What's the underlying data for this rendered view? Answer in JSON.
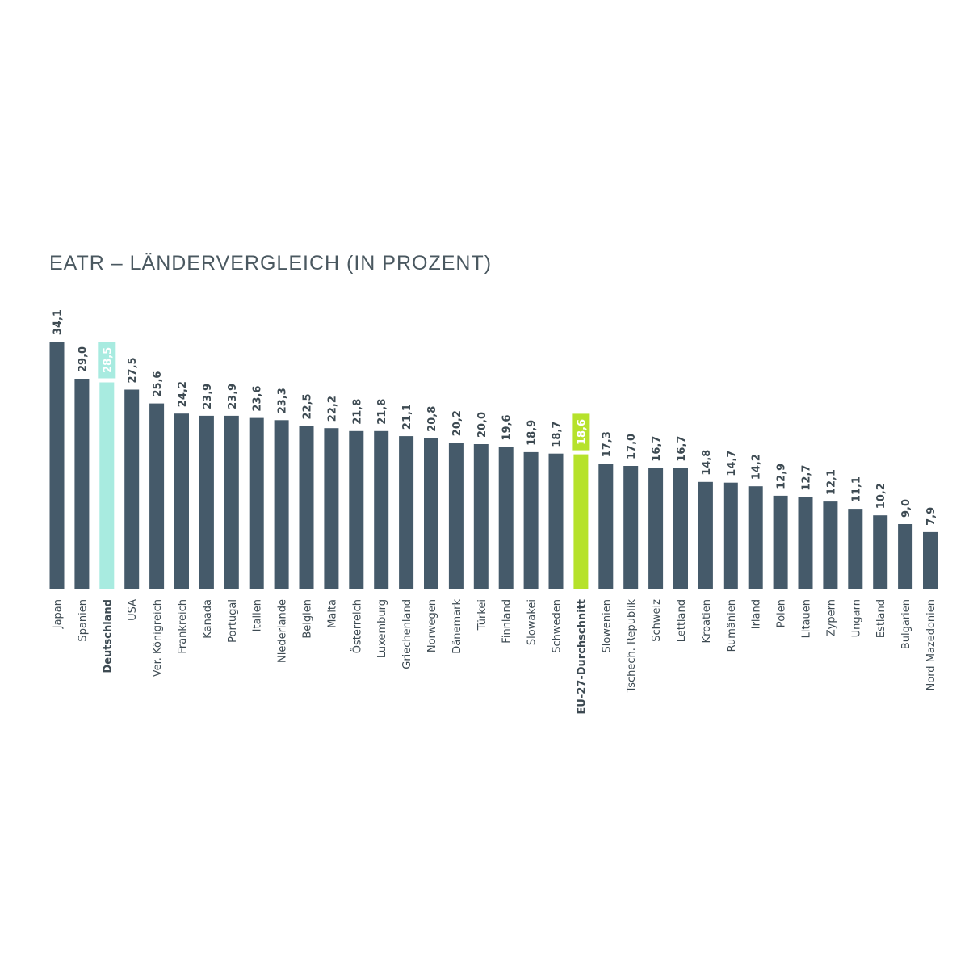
{
  "colors": {
    "bar": "#455a6a",
    "germany": "#a8ebe0",
    "eu_average": "#b6e22b",
    "label_text": "#3d4a52",
    "title_text": "#4a5860",
    "highlight_value_text": "#ffffff"
  },
  "chart_data": {
    "type": "bar",
    "title": "EATR – LÄNDERVERGLEICH (IN PROZENT)",
    "xlabel": "",
    "ylabel": "",
    "ylim": [
      0,
      34.1
    ],
    "grid": false,
    "categories": [
      "Japan",
      "Spanien",
      "Deutschland",
      "USA",
      "Ver. Königreich",
      "Frankreich",
      "Kanada",
      "Portugal",
      "Italien",
      "Niederlande",
      "Belgien",
      "Malta",
      "Österreich",
      "Luxemburg",
      "Griechenland",
      "Norwegen",
      "Dänemark",
      "Türkei",
      "Finnland",
      "Slowakei",
      "Schweden",
      "EU-27-Durchschnitt",
      "Slowenien",
      "Tschech. Republik",
      "Schweiz",
      "Lettland",
      "Kroatien",
      "Rumänien",
      "Irland",
      "Polen",
      "Litauen",
      "Zypern",
      "Ungarn",
      "Estland",
      "Bulgarien",
      "Nord Mazedonien"
    ],
    "values": [
      34.1,
      29.0,
      28.5,
      27.5,
      25.6,
      24.2,
      23.9,
      23.9,
      23.6,
      23.3,
      22.5,
      22.2,
      21.8,
      21.8,
      21.1,
      20.8,
      20.2,
      20.0,
      19.6,
      18.9,
      18.7,
      18.6,
      17.3,
      17.0,
      16.7,
      16.7,
      14.8,
      14.7,
      14.2,
      12.9,
      12.7,
      12.1,
      11.1,
      10.2,
      9.0,
      7.9
    ],
    "value_labels": [
      "34,1",
      "29,0",
      "28,5",
      "27,5",
      "25,6",
      "24,2",
      "23,9",
      "23,9",
      "23,6",
      "23,3",
      "22,5",
      "22,2",
      "21,8",
      "21,8",
      "21,1",
      "20,8",
      "20,2",
      "20,0",
      "19,6",
      "18,9",
      "18,7",
      "18,6",
      "17,3",
      "17,0",
      "16,7",
      "16,7",
      "14,8",
      "14,7",
      "14,2",
      "12,9",
      "12,7",
      "12,1",
      "11,1",
      "10,2",
      "9,0",
      "7,9"
    ],
    "highlights": {
      "Deutschland": "germany",
      "EU-27-Durchschnitt": "eu_average"
    },
    "bold_categories": [
      "Deutschland",
      "EU-27-Durchschnitt"
    ]
  }
}
